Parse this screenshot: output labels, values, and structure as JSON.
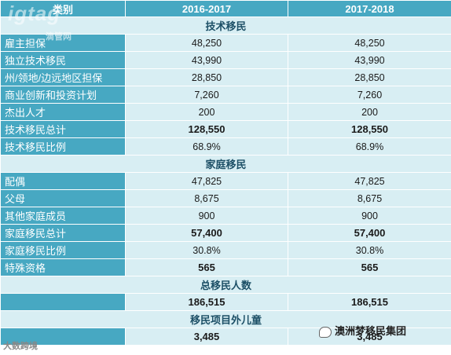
{
  "header": {
    "category": "类别",
    "col1": "2016-2017",
    "col2": "2017-2018"
  },
  "sections": {
    "skilled": "技术移民",
    "family": "家庭移民",
    "total": "总移民人数",
    "child": "移民项目外儿童"
  },
  "rows": {
    "employer": {
      "label": "雇主担保",
      "v1": "48,250",
      "v2": "48,250"
    },
    "independent": {
      "label": "独立技术移民",
      "v1": "43,990",
      "v2": "43,990"
    },
    "state": {
      "label": "州/领地/边远地区担保",
      "v1": "28,850",
      "v2": "28,850"
    },
    "business": {
      "label": "商业创新和投资计划",
      "v1": "7,260",
      "v2": "7,260"
    },
    "talent": {
      "label": "杰出人才",
      "v1": "200",
      "v2": "200"
    },
    "skilled_total": {
      "label": "技术移民总计",
      "v1": "128,550",
      "v2": "128,550"
    },
    "skilled_ratio": {
      "label": "技术移民比例",
      "v1": "68.9%",
      "v2": "68.9%"
    },
    "partner": {
      "label": "配偶",
      "v1": "47,825",
      "v2": "47,825"
    },
    "parent": {
      "label": "父母",
      "v1": "8,675",
      "v2": "8,675"
    },
    "other_family": {
      "label": "其他家庭成员",
      "v1": "900",
      "v2": "900"
    },
    "family_total": {
      "label": "家庭移民总计",
      "v1": "57,400",
      "v2": "57,400"
    },
    "family_ratio": {
      "label": "家庭移民比例",
      "v1": "30.8%",
      "v2": "30.8%"
    },
    "special": {
      "label": "特殊资格",
      "v1": "565",
      "v2": "565"
    },
    "grand_total": {
      "v1": "186,515",
      "v2": "186,515"
    },
    "child": {
      "v1": "3,485",
      "v2": "3,485"
    }
  },
  "watermarks": {
    "top_logo": "igtag",
    "top_sub": "滴管网",
    "bottom_left": "大数跨境",
    "bottom_right": "澳洲梦移民集团"
  },
  "colors": {
    "header_bg": "#47a8c2",
    "cell_bg": "#d8eef3",
    "border": "#ffffff"
  }
}
